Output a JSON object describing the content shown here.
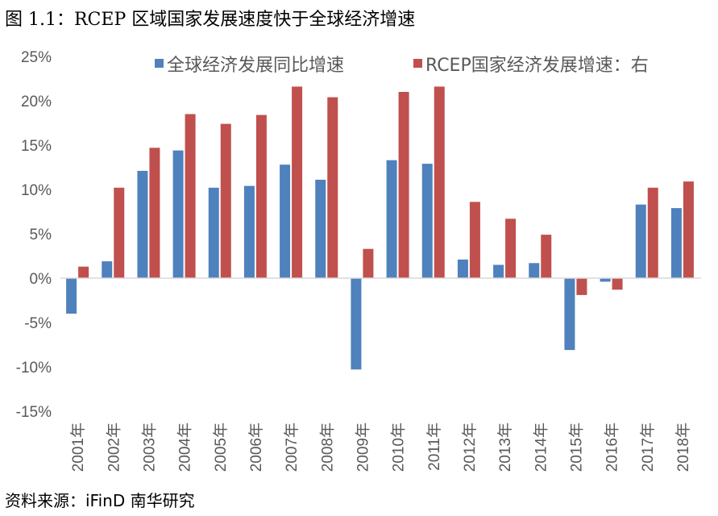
{
  "title": "图 1.1：RCEP 区域国家发展速度快于全球经济增速",
  "source": "资料来源：iFinD 南华研究",
  "chart_data": {
    "type": "bar",
    "categories": [
      "2001年",
      "2002年",
      "2003年",
      "2004年",
      "2005年",
      "2006年",
      "2007年",
      "2008年",
      "2009年",
      "2010年",
      "2011年",
      "2012年",
      "2013年",
      "2014年",
      "2015年",
      "2016年",
      "2017年",
      "2018年"
    ],
    "series": [
      {
        "name": "全球经济发展同比增速",
        "color": "#4f81bd",
        "values": [
          -4.0,
          1.9,
          12.1,
          14.4,
          10.2,
          10.4,
          12.8,
          11.1,
          -10.3,
          13.3,
          12.9,
          2.1,
          1.5,
          1.7,
          -8.1,
          -0.4,
          8.3,
          7.9
        ]
      },
      {
        "name": "RCEP国家经济发展增速：右",
        "color": "#c0504d",
        "values": [
          1.3,
          10.2,
          14.7,
          18.5,
          17.4,
          18.4,
          21.6,
          20.4,
          3.3,
          21.0,
          21.6,
          8.6,
          6.7,
          4.9,
          -1.9,
          -1.3,
          10.2,
          10.9
        ]
      }
    ],
    "yticks": [
      "25%",
      "20%",
      "15%",
      "10%",
      "5%",
      "0%",
      "-5%",
      "-10%",
      "-15%"
    ],
    "ytick_values": [
      25,
      20,
      15,
      10,
      5,
      0,
      -5,
      -10,
      -15
    ],
    "ylim": [
      -15,
      25
    ],
    "legend_position": "top",
    "grid": false
  }
}
